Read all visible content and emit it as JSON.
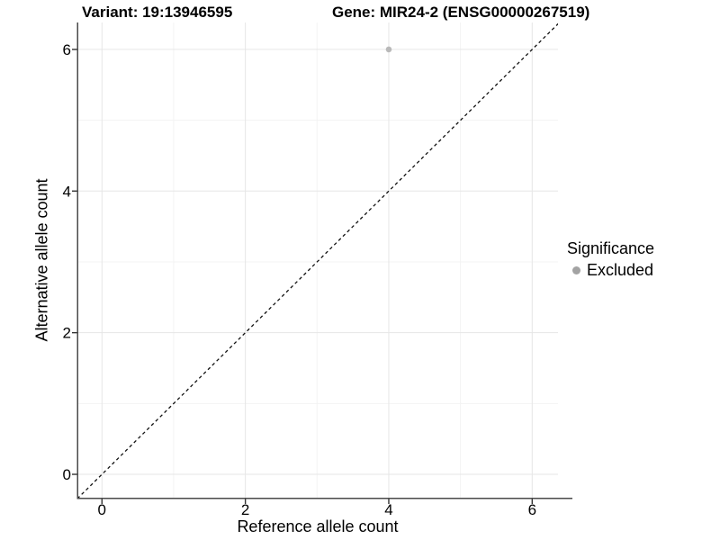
{
  "header": {
    "variant_title": "Variant: 19:13946595",
    "gene_title": "Gene: MIR24-2 (ENSG00000267519)"
  },
  "legend": {
    "title": "Significance",
    "items": [
      {
        "label": "Excluded",
        "color": "#a3a3a3"
      }
    ]
  },
  "chart_data": {
    "type": "scatter",
    "title_left": "Variant: 19:13946595",
    "title_right": "Gene: MIR24-2 (ENSG00000267519)",
    "xlabel": "Reference allele count",
    "ylabel": "Alternative allele count",
    "xlim": [
      -0.33,
      6.36
    ],
    "ylim": [
      -0.33,
      6.38
    ],
    "x_major_ticks": [
      0,
      2,
      4,
      6
    ],
    "x_minor_ticks": [
      1,
      3,
      5
    ],
    "y_major_ticks": [
      0,
      2,
      4,
      6
    ],
    "y_minor_ticks": [
      1,
      3,
      5
    ],
    "grid": true,
    "legend_position": "right",
    "reference_line": {
      "type": "identity y=x",
      "style": "dashed",
      "color": "#111111"
    },
    "series": [
      {
        "name": "Excluded",
        "color": "#b9b9b9",
        "points": [
          {
            "x": 4,
            "y": 6
          }
        ]
      }
    ]
  },
  "colors": {
    "grid_major": "#e6e6e6",
    "grid_minor": "#f3f3f3",
    "axis_line": "#4a4a4a",
    "tick": "#333333",
    "text": "#000000",
    "background": "#ffffff"
  }
}
